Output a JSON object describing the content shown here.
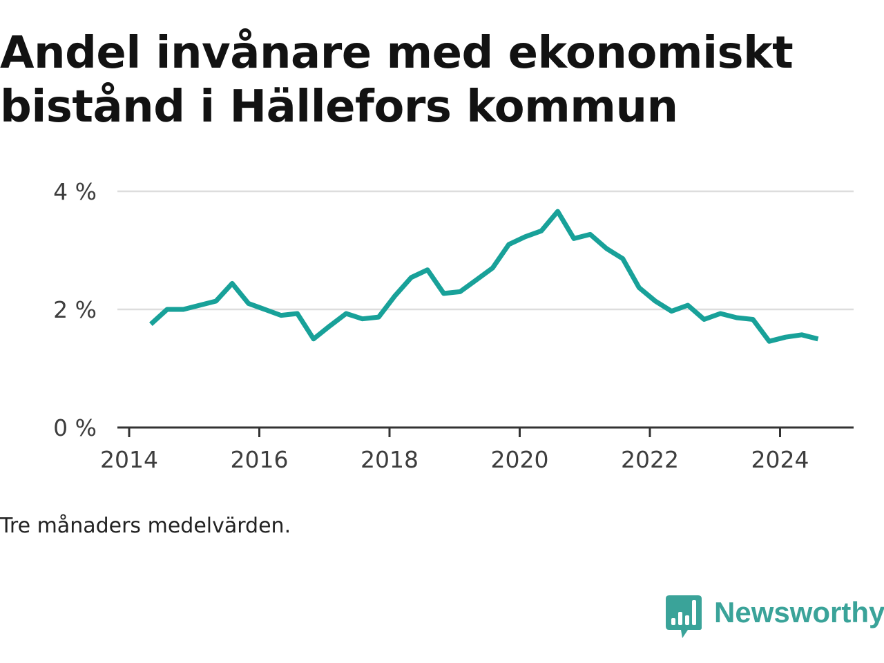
{
  "title": "Andel invånare med ekonomiskt bistånd i Hällefors kommun",
  "note": "Tre månaders medelvärden.",
  "brand": {
    "name": "Newsworthy",
    "logo_icon": "bar-chart-speech-bubble-icon",
    "color": "#3aa399"
  },
  "colors": {
    "line": "#18a199",
    "grid": "#dddddd",
    "axis": "#333333"
  },
  "chart_data": {
    "type": "line",
    "title": "Andel invånare med ekonomiskt bistånd i Hällefors kommun",
    "xlabel": "",
    "ylabel": "",
    "xlim": [
      2014,
      2025.3
    ],
    "ylim": [
      0,
      4
    ],
    "y_unit": "%",
    "grid": "horizontal",
    "x_ticks": [
      "2014",
      "2016",
      "2018",
      "2020",
      "2022",
      "2024"
    ],
    "y_ticks": [
      "0 %",
      "2 %",
      "4 %"
    ],
    "series": [
      {
        "x": [
          "2014-05",
          "2014-08",
          "2014-11",
          "2015-02",
          "2015-05",
          "2015-08",
          "2015-11",
          "2016-02",
          "2016-05",
          "2016-08",
          "2016-11",
          "2017-02",
          "2017-05",
          "2017-08",
          "2017-11",
          "2018-02",
          "2018-05",
          "2018-08",
          "2018-11",
          "2019-02",
          "2019-05",
          "2019-08",
          "2019-11",
          "2020-02",
          "2020-05",
          "2020-08",
          "2020-11",
          "2021-02",
          "2021-05",
          "2021-08",
          "2021-11",
          "2022-02",
          "2022-05",
          "2022-08",
          "2022-11",
          "2023-02",
          "2023-05",
          "2023-08",
          "2023-11",
          "2024-02",
          "2024-05",
          "2024-08"
        ],
        "values": [
          1.75,
          2.0,
          2.0,
          2.07,
          2.14,
          2.44,
          2.1,
          2.0,
          1.9,
          1.93,
          1.5,
          1.72,
          1.93,
          1.84,
          1.87,
          2.23,
          2.54,
          2.67,
          2.27,
          2.3,
          2.5,
          2.7,
          3.1,
          3.23,
          3.33,
          3.66,
          3.2,
          3.27,
          3.03,
          2.86,
          2.37,
          2.14,
          1.97,
          2.07,
          1.83,
          1.93,
          1.86,
          1.83,
          1.46,
          1.53,
          1.57,
          1.5
        ]
      }
    ]
  }
}
